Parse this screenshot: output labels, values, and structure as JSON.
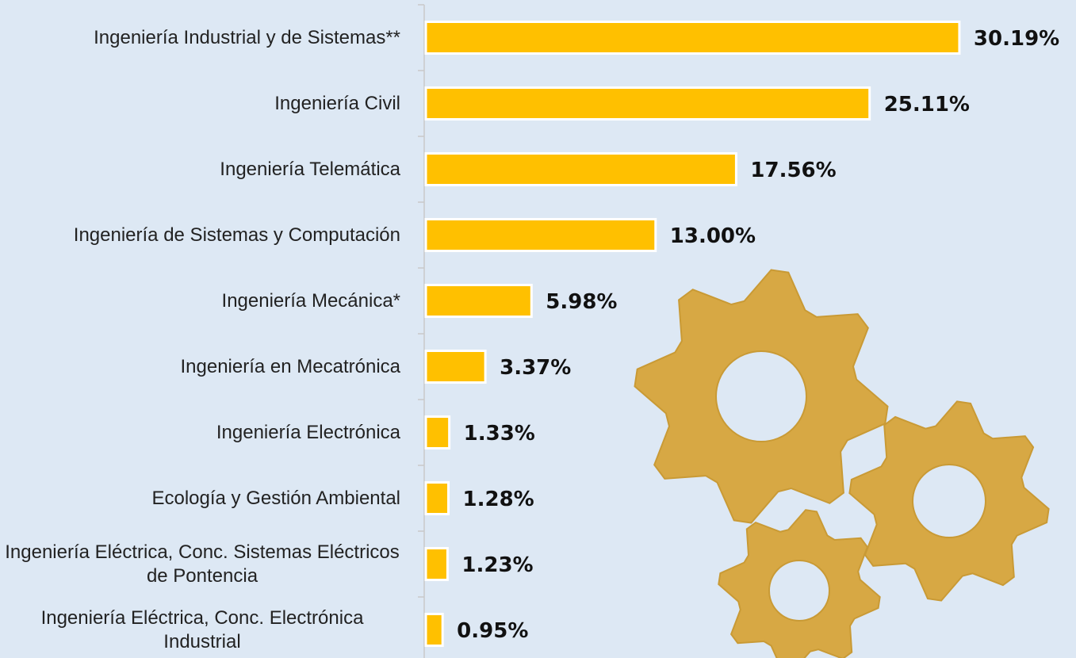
{
  "chart_data": {
    "type": "hbar",
    "categories": [
      "Ingeniería Industrial y de Sistemas**",
      "Ingeniería Civil",
      "Ingeniería Telemática",
      "Ingeniería de Sistemas y Computación",
      "Ingeniería Mecánica*",
      "Ingeniería en Mecatrónica",
      "Ingeniería Electrónica",
      "Ecología y Gestión Ambiental",
      "Ingeniería Eléctrica, Conc. Sistemas Eléctricos de Pontencia",
      "Ingeniería Eléctrica, Conc. Electrónica Industrial"
    ],
    "values": [
      30.19,
      25.11,
      17.56,
      13.0,
      5.98,
      3.37,
      1.33,
      1.28,
      1.23,
      0.95
    ],
    "value_labels": [
      "30.19%",
      "25.11%",
      "17.56%",
      "13.00%",
      "5.98%",
      "3.37%",
      "1.33%",
      "1.28%",
      "1.23%",
      "0.95%"
    ],
    "color": "#ffc000"
  }
}
